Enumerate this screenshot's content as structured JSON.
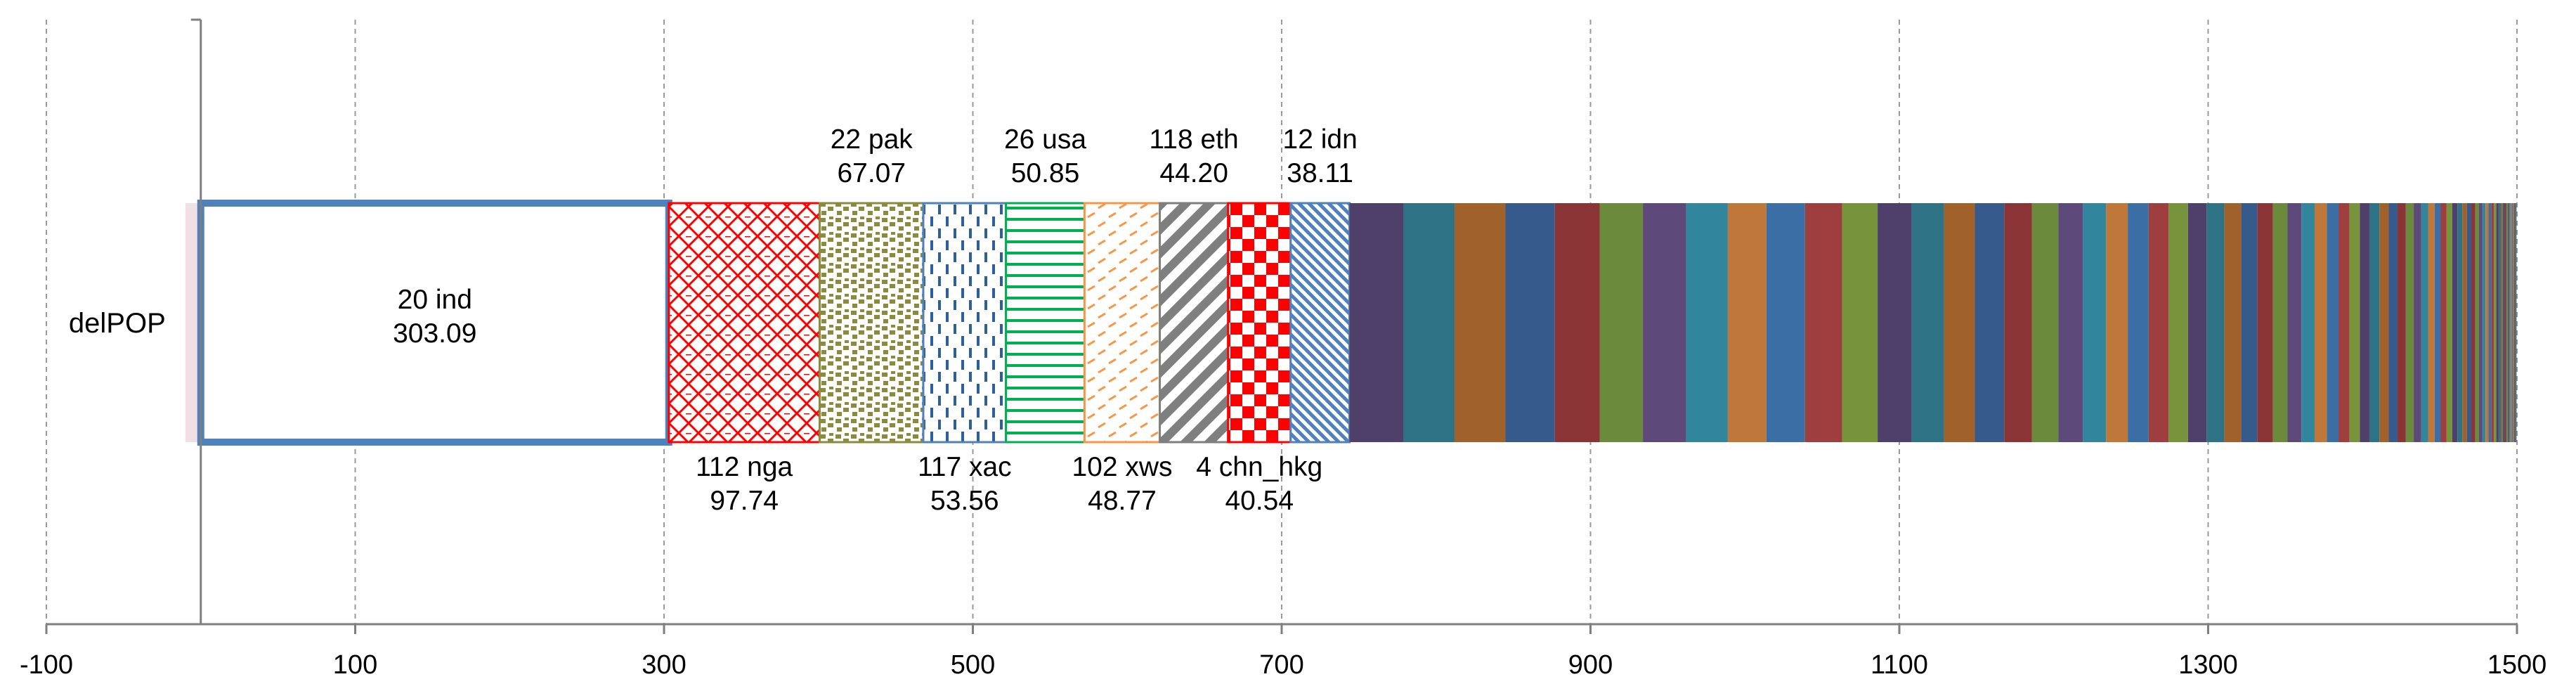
{
  "chart_data": {
    "type": "bar",
    "orientation": "horizontal-stacked",
    "category": "delPOP",
    "xlim": [
      -100,
      1500
    ],
    "x_ticks": [
      -100,
      100,
      300,
      500,
      700,
      900,
      1100,
      1300,
      1500
    ],
    "grid": "vertical",
    "segments": [
      {
        "name": "20 ind",
        "value": 303.09,
        "color": "#4f81bd",
        "fill": "outline",
        "label": "20 ind",
        "value_label": "303.09",
        "label_pos": "inside"
      },
      {
        "name": "112 nga",
        "value": 97.74,
        "color": "#ff0000",
        "fill": "diamond-lattice",
        "label": "112 nga",
        "value_label": "97.74",
        "label_pos": "below"
      },
      {
        "name": "22 pak",
        "value": 67.07,
        "color": "#8b8b3d",
        "fill": "confetti",
        "label": "22 pak",
        "value_label": "67.07",
        "label_pos": "above"
      },
      {
        "name": "117 xac",
        "value": 53.56,
        "color": "#4f81bd",
        "fill": "dashed-vertical",
        "label": "117 xac",
        "value_label": "53.56",
        "label_pos": "below"
      },
      {
        "name": "26 usa",
        "value": 50.85,
        "color": "#00b050",
        "fill": "horizontal-lines",
        "label": "26 usa",
        "value_label": "50.85",
        "label_pos": "above"
      },
      {
        "name": "102 xws",
        "value": 48.77,
        "color": "#f79646",
        "fill": "dashed-diagonal",
        "label": "102 xws",
        "value_label": "48.77",
        "label_pos": "below"
      },
      {
        "name": "118 eth",
        "value": 44.2,
        "color": "#7f7f7f",
        "fill": "wide-diagonal",
        "label": "118 eth",
        "value_label": "44.20",
        "label_pos": "above"
      },
      {
        "name": "4 chn_hkg",
        "value": 40.54,
        "color": "#ff0000",
        "fill": "checkerboard",
        "label": "4 chn_hkg",
        "value_label": "40.54",
        "label_pos": "below"
      },
      {
        "name": "12 idn",
        "value": 38.11,
        "color": "#4f81bd",
        "fill": "fine-diagonal",
        "label": "12 idn",
        "value_label": "38.11",
        "label_pos": "above"
      }
    ],
    "negative_segment": {
      "start": -10,
      "end": 0,
      "color": "#f0e0e6"
    },
    "remaining_segments": [
      35,
      33,
      33,
      32,
      29,
      28,
      28,
      27,
      25,
      25,
      24,
      23,
      22,
      21,
      20,
      19,
      18,
      17,
      16,
      15,
      14,
      13.5,
      13,
      12.5,
      12,
      11.5,
      11,
      10.5,
      10,
      9.5,
      9,
      8.5,
      8,
      7.5,
      7,
      6.8,
      6.5,
      6.2,
      6,
      5.7,
      5.4,
      5.1,
      4.8,
      4.5,
      4.2,
      4,
      3.8,
      3.6,
      3.4,
      3.2,
      3,
      2.8,
      2.6,
      2.4,
      2.2,
      2,
      1.9,
      1.8,
      1.7,
      1.6,
      1.5,
      1.4,
      1.3,
      1.2,
      1.1,
      1,
      0.9,
      0.8,
      0.7,
      0.6,
      0.5,
      0.5,
      0.4,
      0.4,
      0.3,
      0.3
    ],
    "palette": [
      "#4f3f6b",
      "#2e7385",
      "#a0612a",
      "#375a8c",
      "#8b3436",
      "#6b8a3c",
      "#5d4a7a",
      "#31859c",
      "#c0783a",
      "#3a6ea5",
      "#9e3e3e",
      "#77933c"
    ]
  }
}
